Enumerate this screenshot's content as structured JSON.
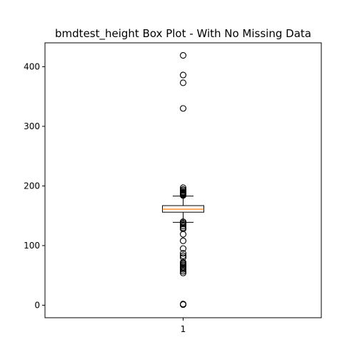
{
  "chart_data": {
    "type": "box",
    "title": "bmdtest_height Box Plot - With No Missing Data",
    "xlabel": "",
    "ylabel": "",
    "grid": false,
    "x_ticks": [
      "1"
    ],
    "y_ticks": [
      0,
      100,
      200,
      300,
      400
    ],
    "ylim": [
      -21,
      440
    ],
    "series": [
      {
        "category": "1",
        "whisker_low": 139,
        "q1": 156,
        "median": 161,
        "q3": 167,
        "whisker_high": 183,
        "outliers": [
          419,
          386,
          373,
          330,
          197,
          194,
          192,
          190,
          189,
          188,
          187,
          186,
          185,
          184,
          140,
          138,
          136,
          133,
          130,
          128,
          119,
          108,
          95,
          87,
          83,
          80,
          72,
          70,
          68,
          66,
          64,
          62,
          60,
          57,
          54,
          2,
          1
        ]
      }
    ],
    "colors": {
      "box": "#000000",
      "median": "#ff7f0e",
      "outlier_edge": "#000000"
    }
  }
}
